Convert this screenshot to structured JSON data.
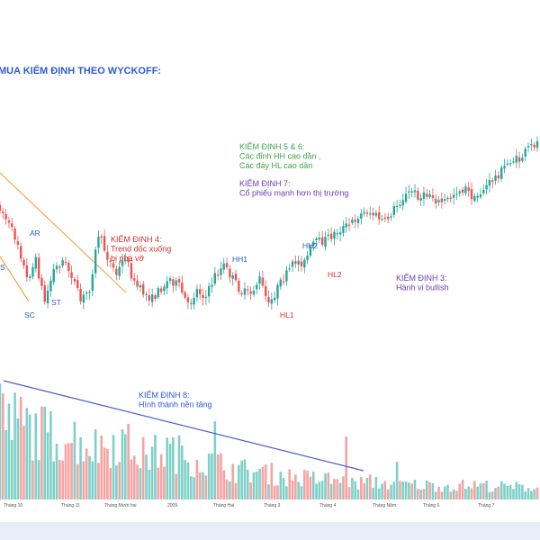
{
  "colors": {
    "up": "#26a69a",
    "down": "#ef5350",
    "up_volume": "#7fd0c8",
    "down_volume": "#f4a3a1",
    "trendline": "#f2a94a",
    "volume_trendline": "#4a5fc8",
    "title": "#2d5bd1",
    "annotation_red": "#d62f2f",
    "annotation_green": "#3aa64a",
    "annotation_purple": "#6a3cb8",
    "annotation_blue": "#2d5bd1",
    "label_blue": "#2d5bd1",
    "label_red": "#d62f2f"
  },
  "title": "MUA KIỂM ĐỊNH THEO WYCKOFF:",
  "annotations": [
    {
      "id": "test4",
      "color": "annotation_red",
      "lines": [
        "KIỂM ĐỊNH 4:",
        "Trend dốc xuống",
        "bị phá vỡ"
      ]
    },
    {
      "id": "test56",
      "color": "annotation_green",
      "lines": [
        "KIỂM ĐỊNH 5 & 6:",
        "Các đỉnh HH cao dần ,",
        "Các đáy HL cao dần"
      ]
    },
    {
      "id": "test7",
      "color": "annotation_purple",
      "lines": [
        "KIỂM ĐỊNH 7:",
        "Cổ phiếu mạnh hơn thị trường"
      ]
    },
    {
      "id": "test3",
      "color": "annotation_purple",
      "lines": [
        "KIỂM ĐỊNH 3:",
        "Hành vi bullish"
      ]
    },
    {
      "id": "test8",
      "color": "annotation_blue",
      "lines": [
        "KIỂM ĐỊNH 8:",
        "Hình thành nền tảng"
      ]
    }
  ],
  "point_labels": [
    {
      "text": "S",
      "color": "label_blue"
    },
    {
      "text": "SC",
      "color": "label_blue"
    },
    {
      "text": "AR",
      "color": "label_blue"
    },
    {
      "text": "ST",
      "color": "label_blue"
    },
    {
      "text": "HH1",
      "color": "label_blue"
    },
    {
      "text": "HL1",
      "color": "label_red"
    },
    {
      "text": "HH2",
      "color": "label_blue"
    },
    {
      "text": "HL2",
      "color": "label_red"
    }
  ],
  "chart_data": {
    "type": "candlestick",
    "x_axis_labels": [
      "Tháng 10",
      "Tháng 11",
      "Tháng Mười hai",
      "2009",
      "Tháng Hai",
      "Tháng 3",
      "Tháng 4",
      "Tháng Năm",
      "Tháng 6",
      "Tháng 7"
    ],
    "grid": false,
    "price_anchors": [
      [
        0,
        230
      ],
      [
        3,
        250
      ],
      [
        6,
        270
      ],
      [
        9,
        310
      ],
      [
        12,
        290
      ],
      [
        15,
        335
      ],
      [
        18,
        300
      ],
      [
        21,
        290
      ],
      [
        24,
        305
      ],
      [
        27,
        335
      ],
      [
        30,
        320
      ],
      [
        33,
        260
      ],
      [
        36,
        285
      ],
      [
        39,
        305
      ],
      [
        42,
        285
      ],
      [
        45,
        315
      ],
      [
        48,
        325
      ],
      [
        51,
        332
      ],
      [
        54,
        320
      ],
      [
        57,
        310
      ],
      [
        60,
        318
      ],
      [
        63,
        340
      ],
      [
        66,
        322
      ],
      [
        69,
        330
      ],
      [
        72,
        306
      ],
      [
        75,
        295
      ],
      [
        78,
        310
      ],
      [
        81,
        325
      ],
      [
        84,
        326
      ],
      [
        87,
        310
      ],
      [
        90,
        340
      ],
      [
        93,
        320
      ],
      [
        96,
        305
      ],
      [
        99,
        290
      ],
      [
        102,
        292
      ],
      [
        105,
        270
      ],
      [
        108,
        268
      ],
      [
        111,
        262
      ],
      [
        114,
        255
      ],
      [
        117,
        250
      ],
      [
        120,
        240
      ],
      [
        123,
        235
      ],
      [
        126,
        240
      ],
      [
        129,
        247
      ],
      [
        132,
        232
      ],
      [
        135,
        220
      ],
      [
        138,
        212
      ],
      [
        141,
        220
      ],
      [
        144,
        215
      ],
      [
        147,
        225
      ],
      [
        150,
        222
      ],
      [
        153,
        212
      ],
      [
        156,
        210
      ],
      [
        159,
        222
      ],
      [
        162,
        210
      ],
      [
        165,
        200
      ],
      [
        168,
        190
      ],
      [
        171,
        178
      ],
      [
        174,
        178
      ],
      [
        177,
        165
      ],
      [
        180,
        158
      ]
    ],
    "volume_anchors": [
      [
        0,
        0.78
      ],
      [
        8,
        0.72
      ],
      [
        16,
        0.62
      ],
      [
        24,
        0.6
      ],
      [
        32,
        0.5
      ],
      [
        40,
        0.58
      ],
      [
        48,
        0.42
      ],
      [
        56,
        0.47
      ],
      [
        64,
        0.4
      ],
      [
        72,
        0.34
      ],
      [
        80,
        0.28
      ],
      [
        88,
        0.26
      ],
      [
        96,
        0.22
      ],
      [
        104,
        0.2
      ],
      [
        112,
        0.19
      ],
      [
        118,
        0.15
      ],
      [
        124,
        0.17
      ],
      [
        132,
        0.15
      ],
      [
        140,
        0.14
      ],
      [
        150,
        0.13
      ],
      [
        160,
        0.14
      ],
      [
        170,
        0.12
      ],
      [
        180,
        0.12
      ]
    ],
    "candle_count": 181
  }
}
